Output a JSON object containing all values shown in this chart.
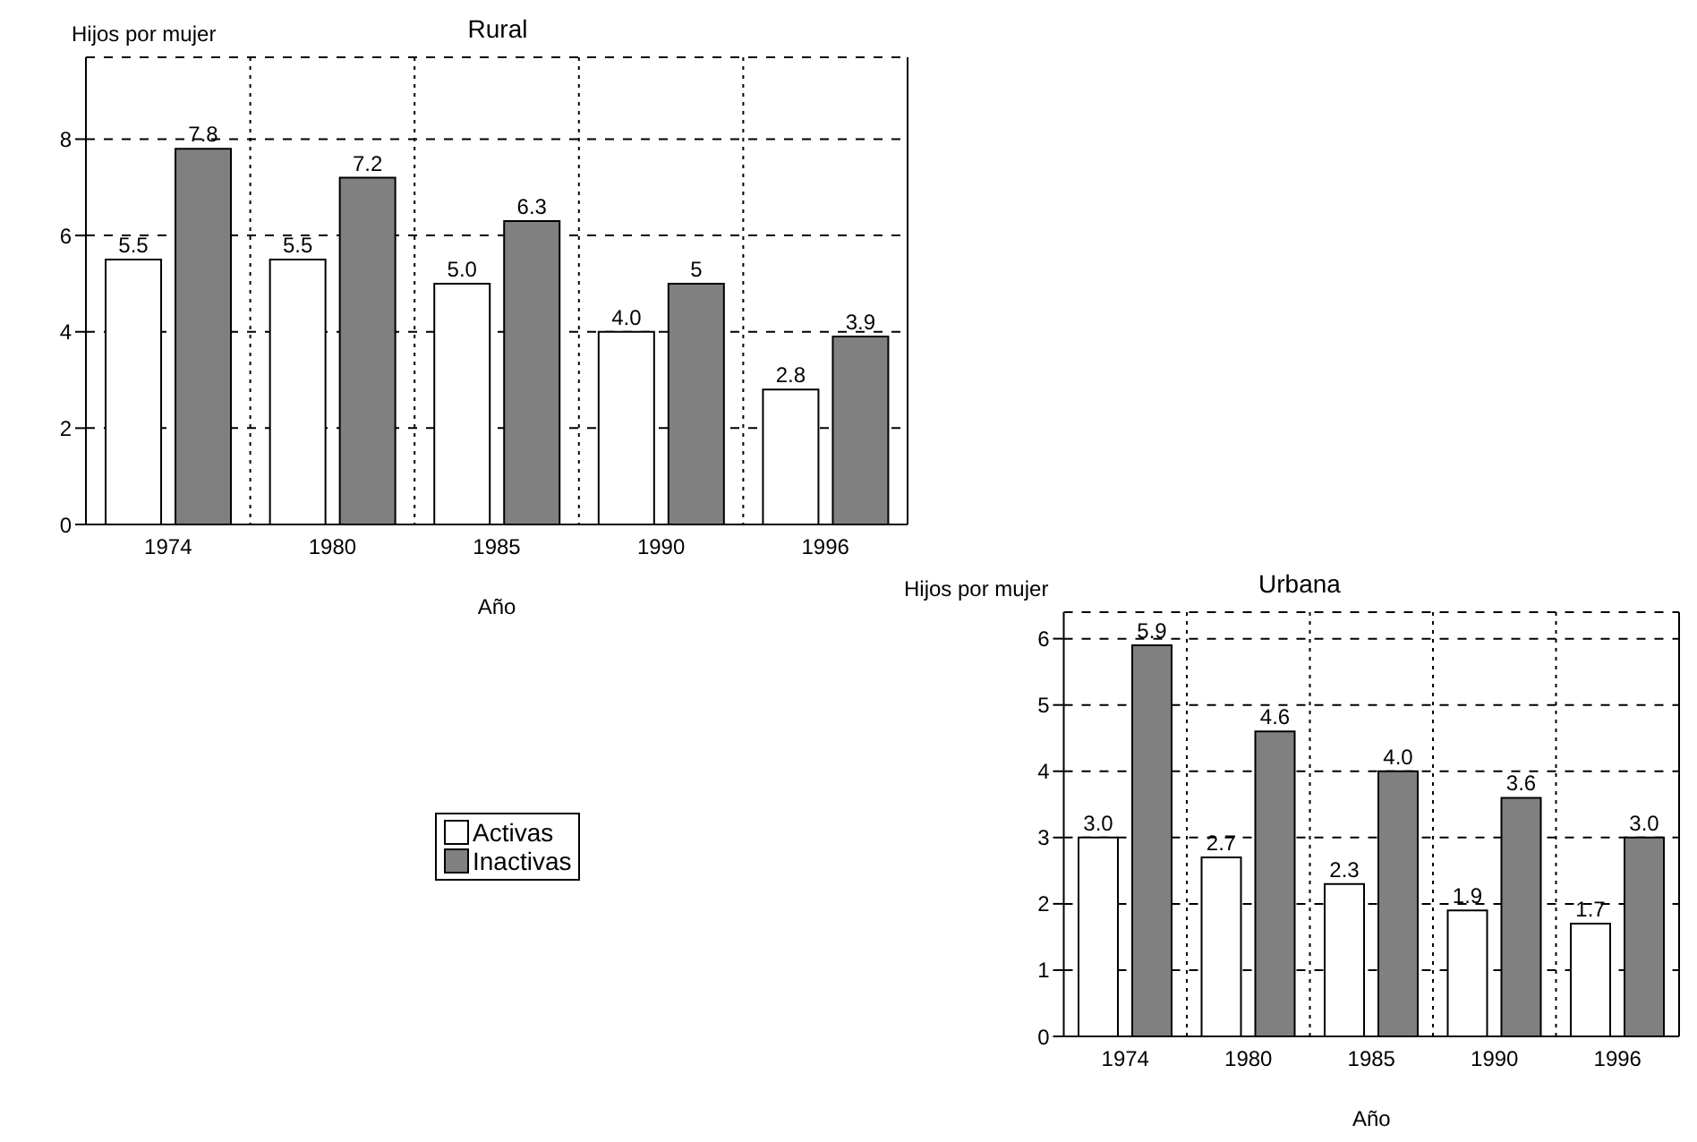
{
  "chart_data": [
    {
      "type": "bar",
      "title": "Rural",
      "ylabel": "Hijos por mujer",
      "xlabel": "Año",
      "categories": [
        "1974",
        "1980",
        "1985",
        "1990",
        "1996"
      ],
      "series": [
        {
          "color": "#ffffff",
          "values": [
            5.5,
            5.5,
            5.0,
            4.0,
            2.8
          ],
          "value_labels": [
            "5.5",
            "5.5",
            "5.0",
            "4.0",
            "2.8"
          ]
        },
        {
          "color": "#808080",
          "values": [
            7.8,
            7.2,
            6.3,
            5,
            3.9
          ],
          "value_labels": [
            "7.8",
            "7.2",
            "6.3",
            "5",
            "3.9"
          ]
        }
      ],
      "ylim": [
        0,
        9.7
      ],
      "yticks": [
        0,
        2,
        4,
        6,
        8
      ],
      "grid": true
    },
    {
      "type": "bar",
      "title": "Urbana",
      "ylabel": "Hijos por mujer",
      "xlabel": "Año",
      "categories": [
        "1974",
        "1980",
        "1985",
        "1990",
        "1996"
      ],
      "series": [
        {
          "name": "Activas",
          "color": "#ffffff",
          "values": [
            3.0,
            2.7,
            2.3,
            1.9,
            1.7
          ],
          "value_labels": [
            "3.0",
            "2.7",
            "2.3",
            "1.9",
            "1.7"
          ]
        },
        {
          "name": "Inactivas",
          "color": "#808080",
          "values": [
            5.9,
            4.6,
            4.0,
            3.6,
            3.0
          ],
          "value_labels": [
            "5.9",
            "4.6",
            "4.0",
            "3.6",
            "3.0"
          ]
        }
      ],
      "ylim": [
        0,
        6.4
      ],
      "yticks": [
        0,
        1,
        2,
        3,
        4,
        5,
        6
      ],
      "grid": true,
      "legend": "left"
    }
  ]
}
